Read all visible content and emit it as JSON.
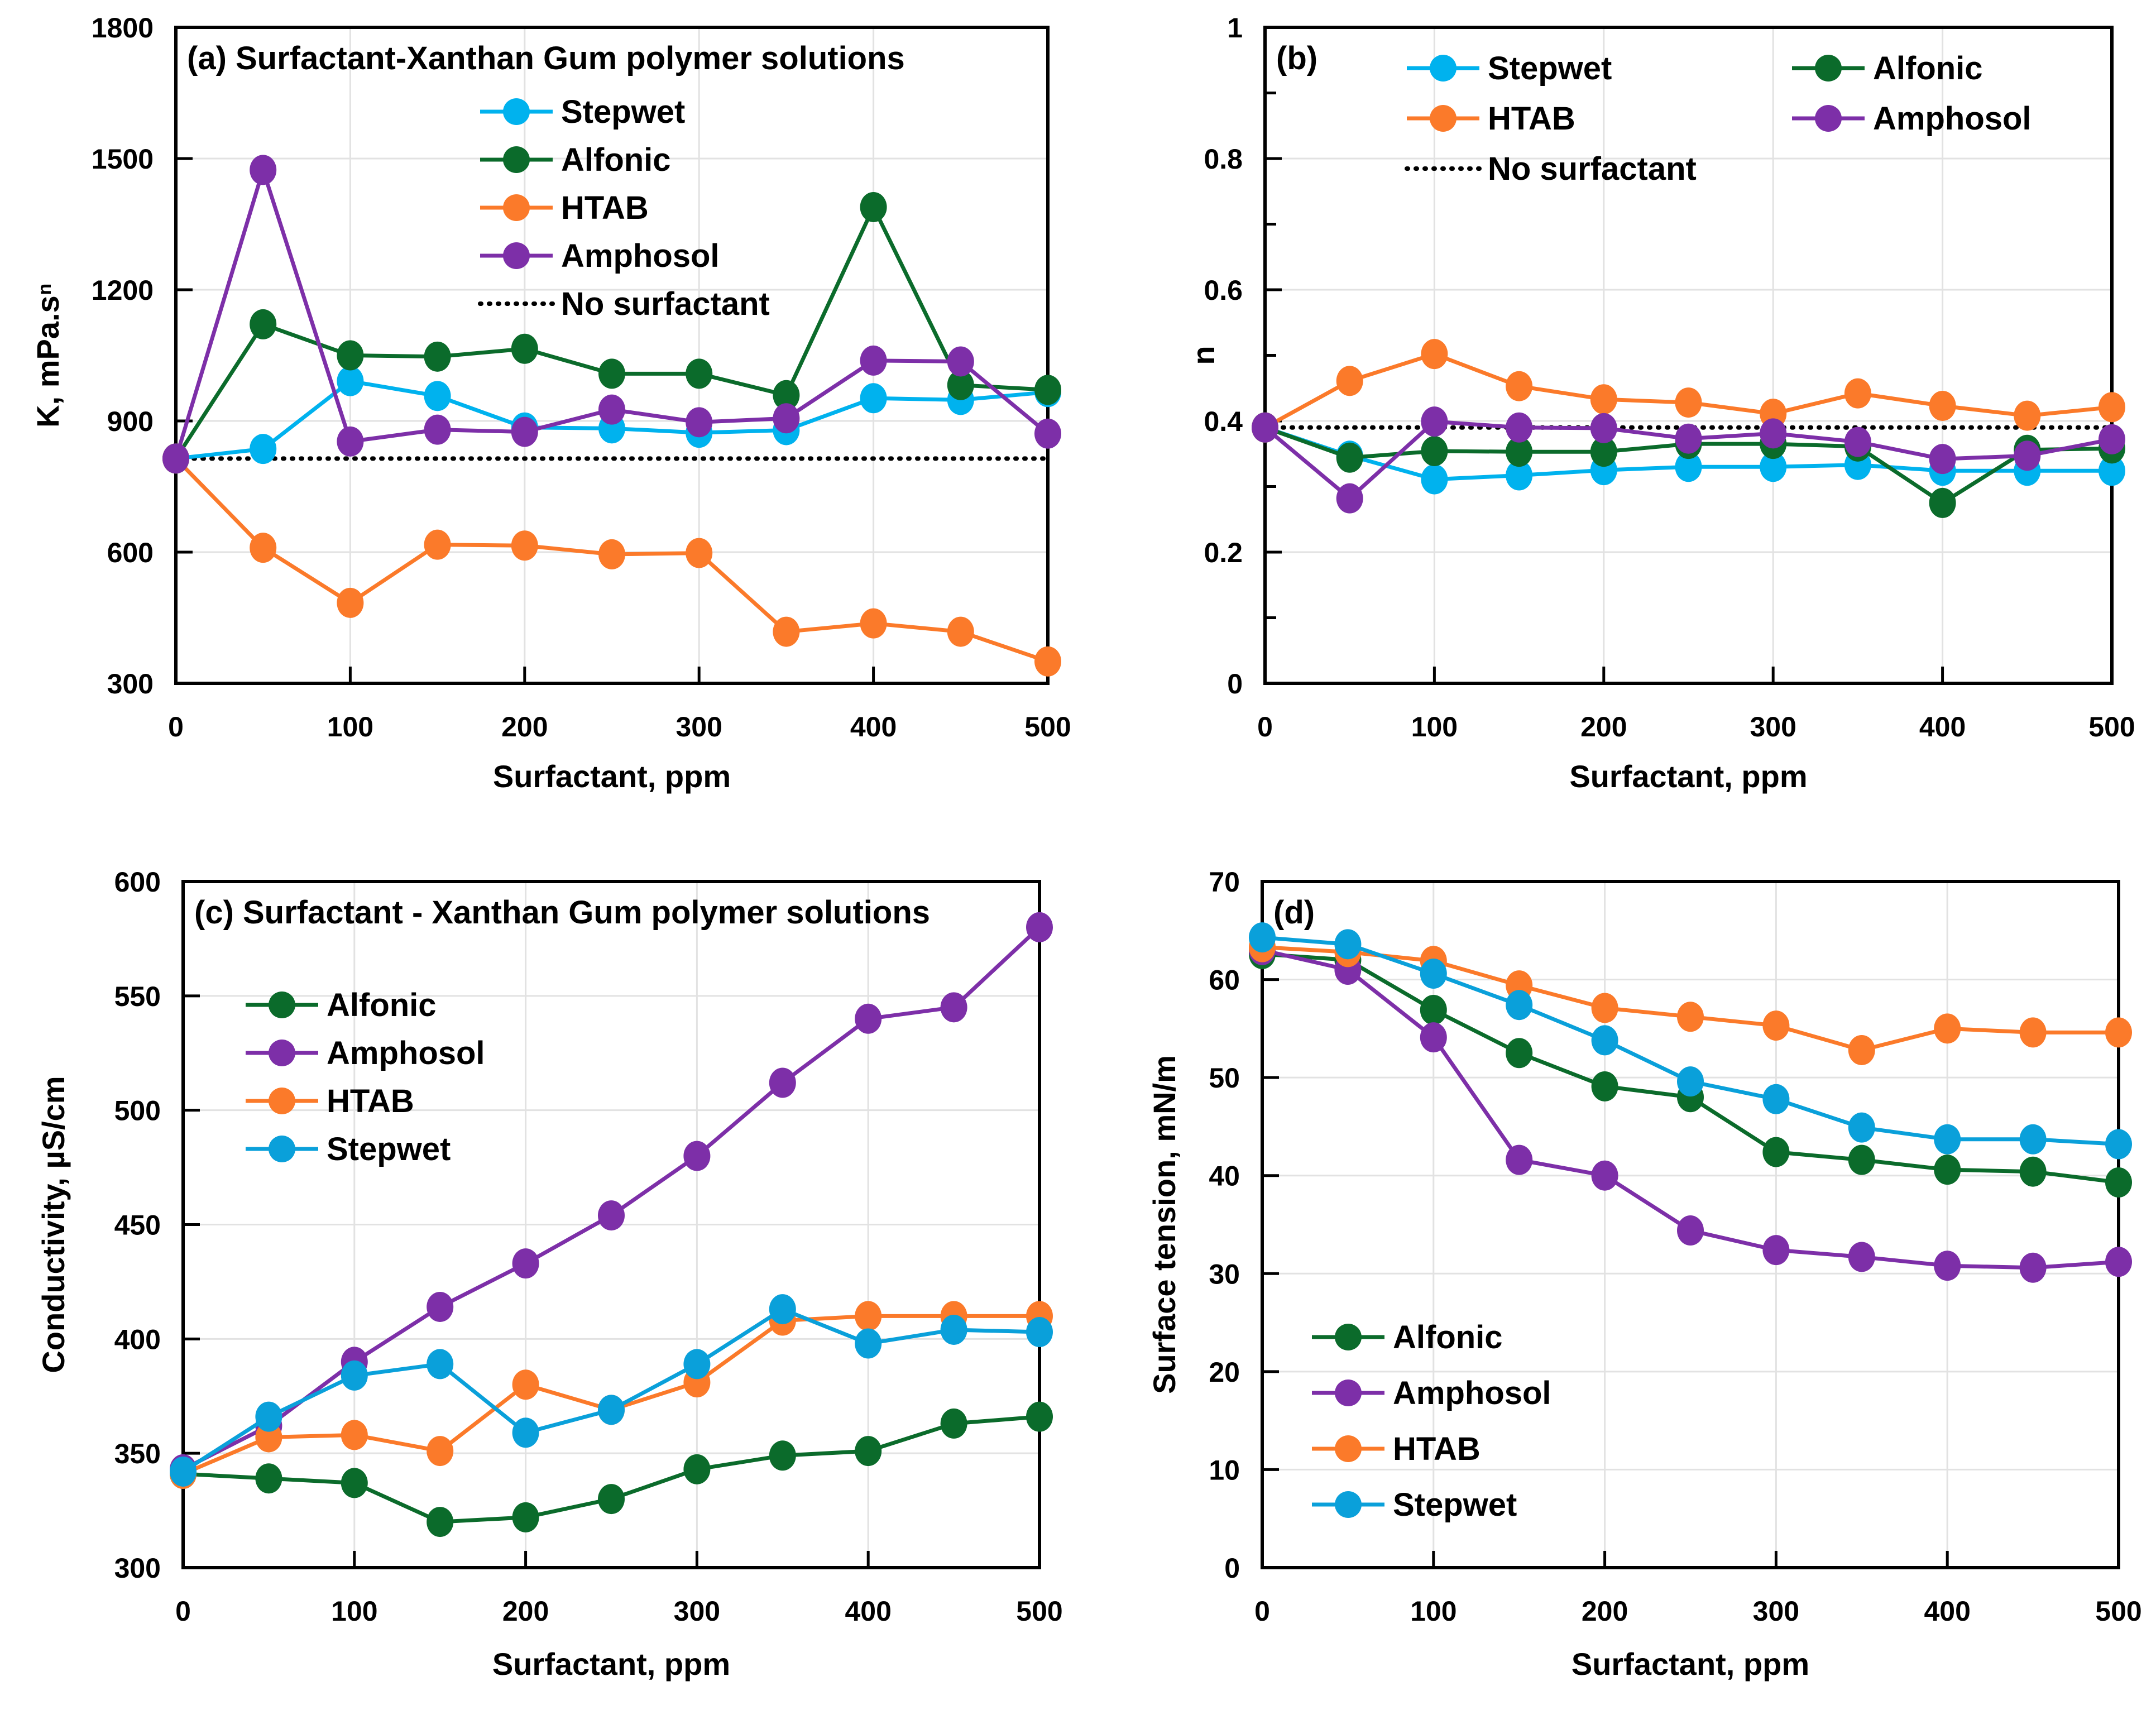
{
  "figure": {
    "colors": {
      "Stepwet": "#00B2EE",
      "Stepwet_cd": "#0AA0DA",
      "Alfonic": "#0B6B2B",
      "HTAB": "#FB7A2A",
      "Amphosol": "#7D2FA8",
      "No surfactant": "#000000"
    }
  },
  "chart_data": [
    {
      "id": "a",
      "type": "line",
      "title": "(a) Surfactant-Xanthan Gum polymer solutions",
      "xlabel": "Surfactant, ppm",
      "ylabel": "K, mPa.sⁿ",
      "xlim": [
        0,
        500
      ],
      "ylim": [
        300,
        1800
      ],
      "xticks": [
        0,
        100,
        200,
        300,
        400,
        500
      ],
      "yticks": [
        300,
        600,
        900,
        1200,
        1500,
        1800
      ],
      "yminor": [],
      "grid": true,
      "legend_position": "top-center",
      "legend_columns": 1,
      "x": [
        0,
        50,
        100,
        150,
        200,
        250,
        300,
        350,
        400,
        450,
        500
      ],
      "series": [
        {
          "name": "Stepwet",
          "color_key": "Stepwet",
          "values": [
            814,
            836,
            991,
            957,
            885,
            883,
            873,
            879,
            952,
            948,
            966
          ]
        },
        {
          "name": "Alfonic",
          "color_key": "Alfonic",
          "values": [
            814,
            1121,
            1050,
            1047,
            1065,
            1008,
            1008,
            959,
            1389,
            982,
            971
          ]
        },
        {
          "name": "HTAB",
          "color_key": "HTAB",
          "values": [
            814,
            610,
            484,
            617,
            615,
            595,
            598,
            418,
            437,
            418,
            350
          ]
        },
        {
          "name": "Amphosol",
          "color_key": "Amphosol",
          "values": [
            814,
            1474,
            853,
            880,
            875,
            926,
            897,
            906,
            1038,
            1036,
            871
          ]
        }
      ],
      "reference_line": {
        "name": "No surfactant",
        "value": 814,
        "style": "dotted"
      },
      "legend_order": [
        "Stepwet",
        "Alfonic",
        "HTAB",
        "Amphosol",
        "No surfactant"
      ]
    },
    {
      "id": "b",
      "type": "line",
      "title": "(b)",
      "xlabel": "Surfactant, ppm",
      "ylabel": "n",
      "xlim": [
        0,
        500
      ],
      "ylim": [
        0,
        1
      ],
      "xticks": [
        0,
        100,
        200,
        300,
        400,
        500
      ],
      "yticks": [
        0,
        0.2,
        0.4,
        0.6,
        0.8,
        1
      ],
      "yminor": [
        0.1,
        0.3,
        0.5,
        0.7,
        0.9
      ],
      "grid": true,
      "legend_position": "top",
      "legend_columns": 2,
      "x": [
        0,
        50,
        100,
        150,
        200,
        250,
        300,
        350,
        400,
        450,
        500
      ],
      "series": [
        {
          "name": "Stepwet",
          "color_key": "Stepwet",
          "values": [
            0.39,
            0.347,
            0.311,
            0.317,
            0.325,
            0.33,
            0.33,
            0.333,
            0.324,
            0.324,
            0.324
          ]
        },
        {
          "name": "Alfonic",
          "color_key": "Alfonic",
          "values": [
            0.39,
            0.344,
            0.354,
            0.353,
            0.353,
            0.365,
            0.365,
            0.361,
            0.275,
            0.356,
            0.358
          ]
        },
        {
          "name": "HTAB",
          "color_key": "HTAB",
          "values": [
            0.39,
            0.461,
            0.502,
            0.453,
            0.433,
            0.428,
            0.411,
            0.442,
            0.423,
            0.408,
            0.421
          ]
        },
        {
          "name": "Amphosol",
          "color_key": "Amphosol",
          "values": [
            0.39,
            0.282,
            0.399,
            0.39,
            0.389,
            0.373,
            0.381,
            0.368,
            0.342,
            0.347,
            0.372
          ]
        }
      ],
      "reference_line": {
        "name": "No surfactant",
        "value": 0.39,
        "style": "dotted"
      },
      "legend_order": [
        "Stepwet",
        "Alfonic",
        "HTAB",
        "Amphosol",
        "No surfactant"
      ]
    },
    {
      "id": "c",
      "type": "line",
      "title": "(c) Surfactant - Xanthan Gum polymer solutions",
      "xlabel": "Surfactant, ppm",
      "ylabel": "Conductivity, µS/cm",
      "xlim": [
        0,
        500
      ],
      "ylim": [
        300,
        600
      ],
      "xticks": [
        0,
        100,
        200,
        300,
        400,
        500
      ],
      "yticks": [
        300,
        350,
        400,
        450,
        500,
        550,
        600
      ],
      "yminor": [],
      "grid": true,
      "legend_position": "upper-left",
      "legend_columns": 1,
      "x": [
        0,
        50,
        100,
        150,
        200,
        250,
        300,
        350,
        400,
        450,
        500
      ],
      "series": [
        {
          "name": "Alfonic",
          "color_key": "Alfonic",
          "values": [
            341,
            339,
            337,
            320,
            322,
            330,
            343,
            349,
            351,
            363,
            366
          ]
        },
        {
          "name": "Amphosol",
          "color_key": "Amphosol",
          "values": [
            343,
            362,
            390,
            414,
            433,
            454,
            480,
            512,
            540,
            545,
            580
          ]
        },
        {
          "name": "HTAB",
          "color_key": "HTAB",
          "values": [
            341,
            357,
            358,
            351,
            380,
            369,
            381,
            408,
            410,
            410,
            410
          ]
        },
        {
          "name": "Stepwet",
          "color_key": "Stepwet_cd",
          "values": [
            342,
            366,
            384,
            389,
            359,
            369,
            389,
            413,
            398,
            404,
            403
          ]
        }
      ],
      "legend_order": [
        "Alfonic",
        "Amphosol",
        "HTAB",
        "Stepwet"
      ]
    },
    {
      "id": "d",
      "type": "line",
      "title": "(d)",
      "xlabel": "Surfactant, ppm",
      "ylabel": "Surface tension, mN/m",
      "xlim": [
        0,
        500
      ],
      "ylim": [
        0,
        70
      ],
      "xticks": [
        0,
        100,
        200,
        300,
        400,
        500
      ],
      "yticks": [
        0,
        10,
        20,
        30,
        40,
        50,
        60,
        70
      ],
      "yminor": [],
      "grid": true,
      "legend_position": "lower-left",
      "legend_columns": 1,
      "x": [
        0,
        50,
        100,
        150,
        200,
        250,
        300,
        350,
        400,
        450,
        500
      ],
      "series": [
        {
          "name": "Alfonic",
          "color_key": "Alfonic",
          "values": [
            62.6,
            62.0,
            56.9,
            52.5,
            49.1,
            48.0,
            42.4,
            41.6,
            40.6,
            40.4,
            39.3
          ]
        },
        {
          "name": "Amphosol",
          "color_key": "Amphosol",
          "values": [
            63.0,
            61.0,
            54.1,
            41.6,
            40.0,
            34.4,
            32.4,
            31.7,
            30.8,
            30.6,
            31.2
          ]
        },
        {
          "name": "HTAB",
          "color_key": "HTAB",
          "values": [
            63.3,
            62.8,
            61.9,
            59.4,
            57.1,
            56.2,
            55.3,
            52.8,
            55.0,
            54.6,
            54.6
          ]
        },
        {
          "name": "Stepwet",
          "color_key": "Stepwet_cd",
          "values": [
            64.3,
            63.6,
            60.6,
            57.4,
            53.8,
            49.6,
            47.8,
            44.9,
            43.7,
            43.7,
            43.2
          ]
        }
      ],
      "legend_order": [
        "Alfonic",
        "Amphosol",
        "HTAB",
        "Stepwet"
      ]
    }
  ]
}
